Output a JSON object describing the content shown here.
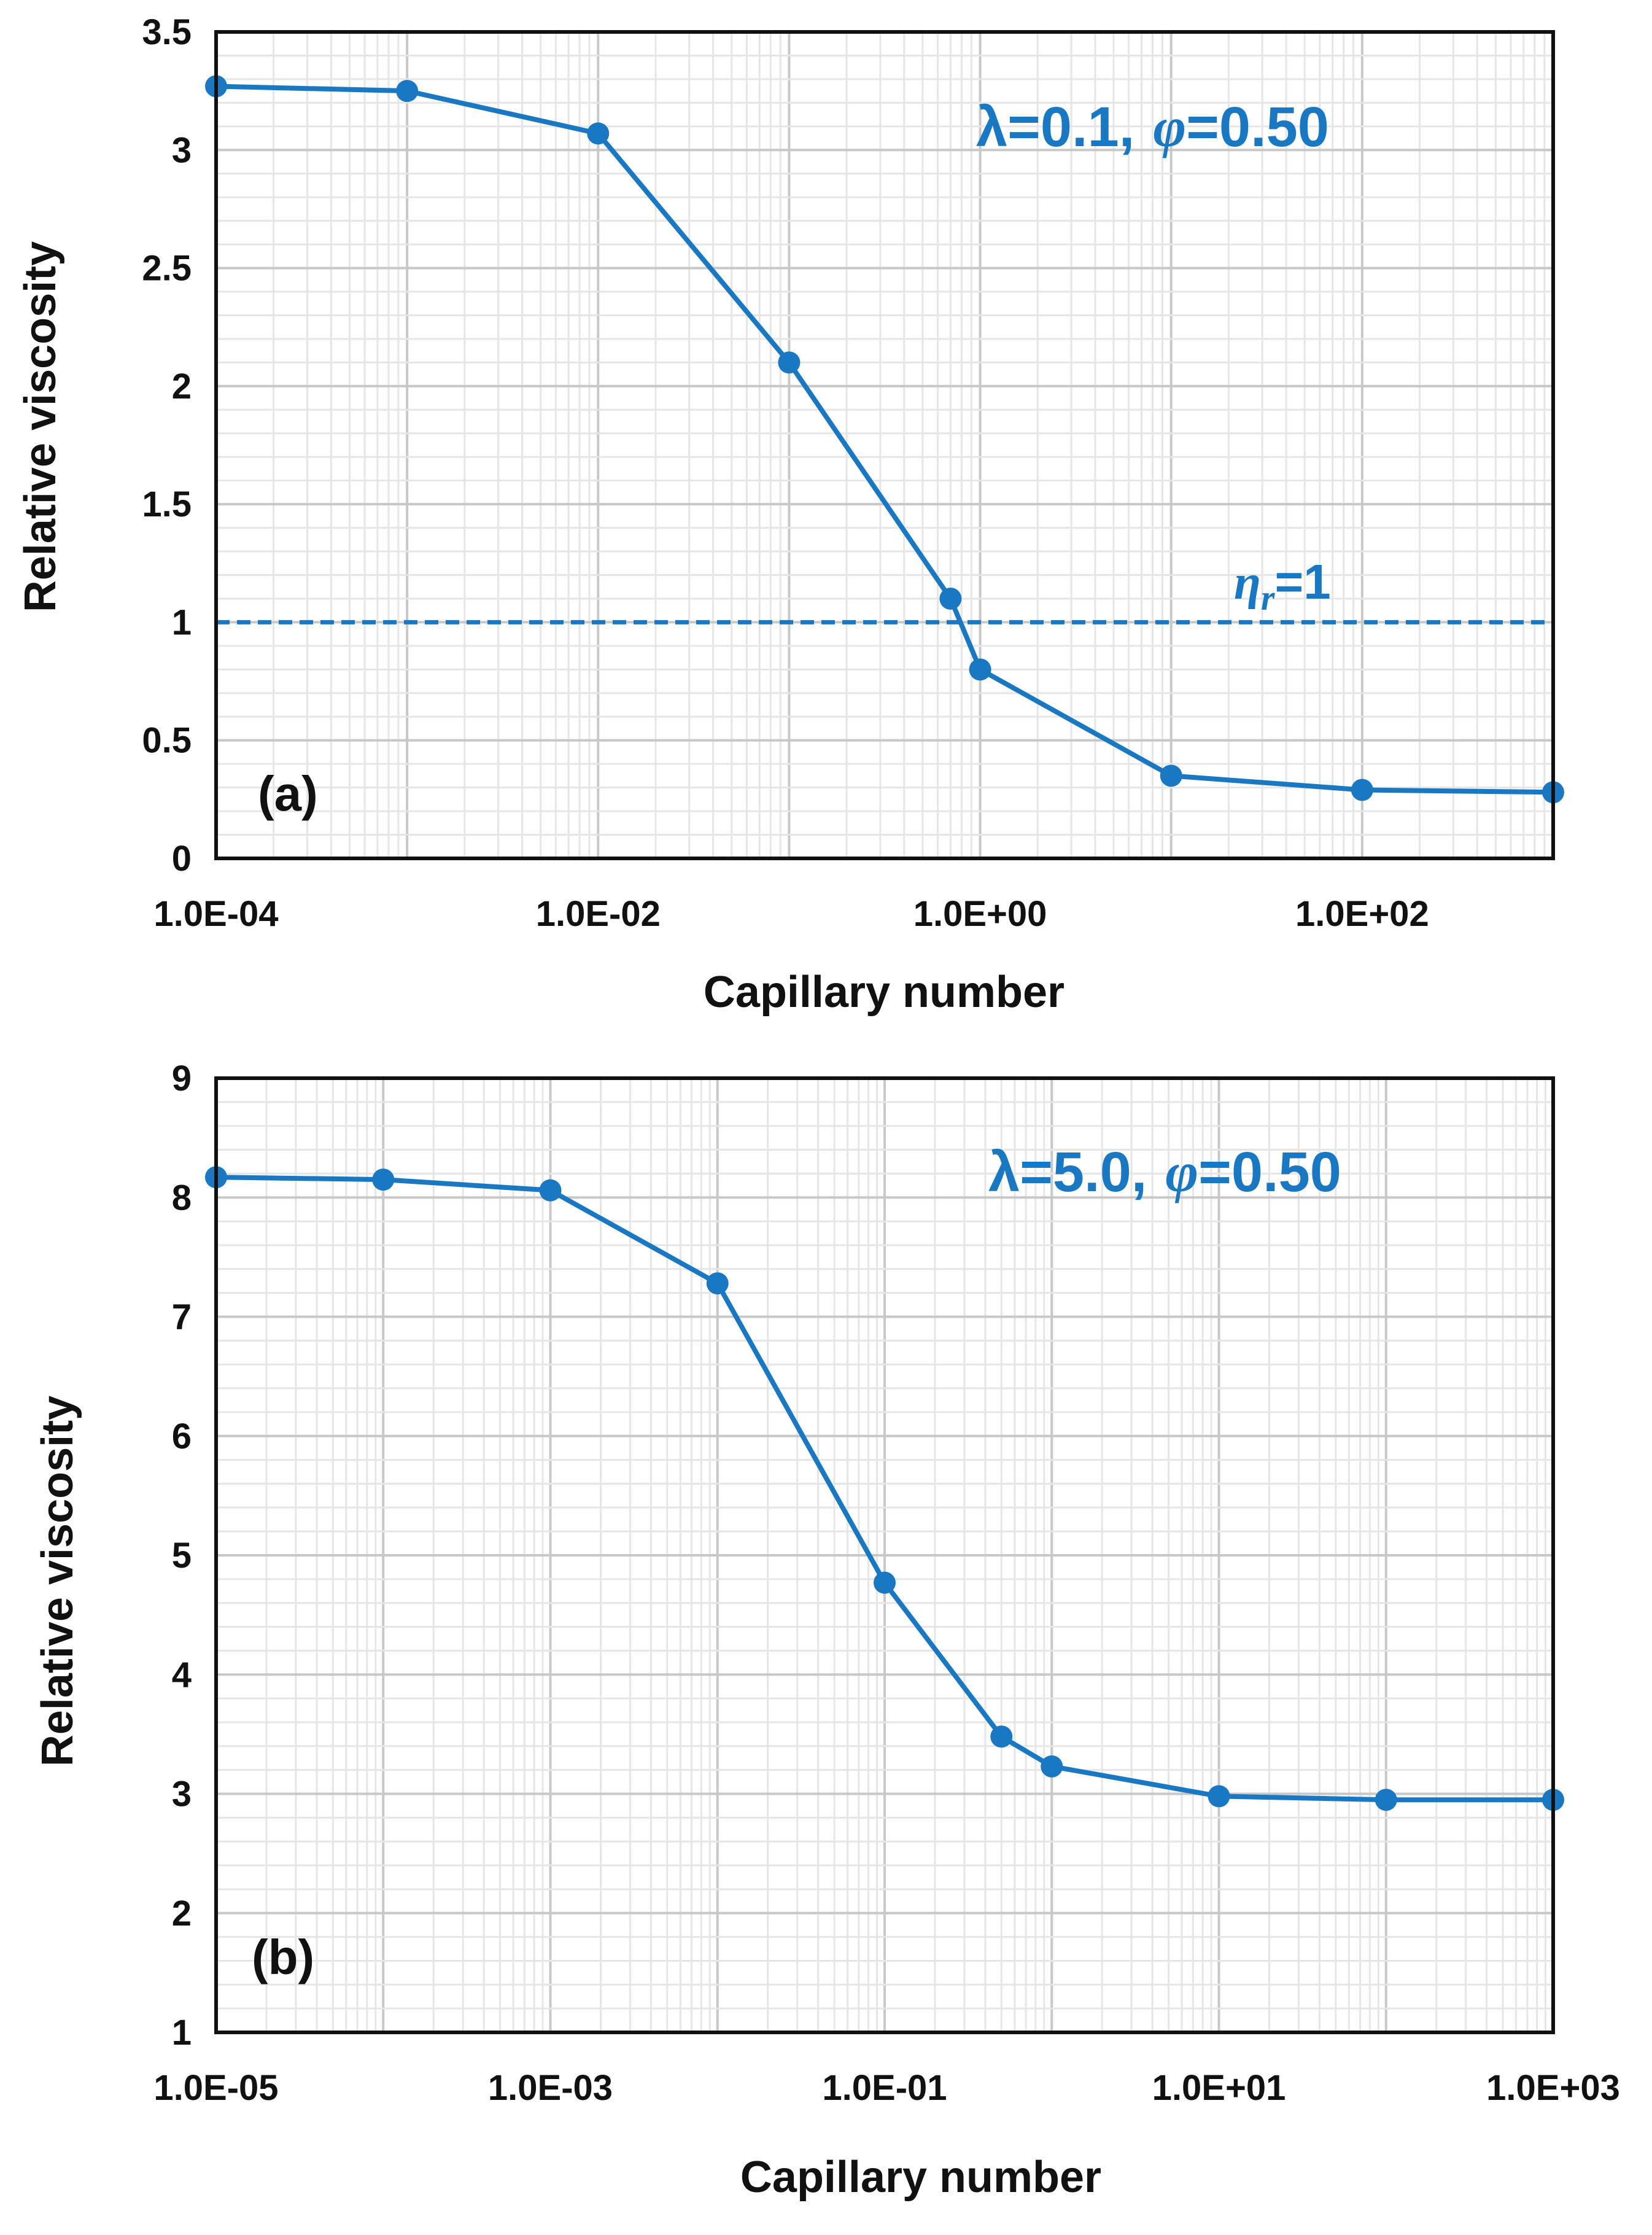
{
  "colors": {
    "series": "#1a78c2",
    "grid_major": "#c8c8c8",
    "grid_minor": "#e6e6e6",
    "axis": "#111111"
  },
  "chart_data": [
    {
      "type": "line",
      "panel_label": "(a)",
      "xlabel": "Capillary number",
      "ylabel": "Relative viscosity",
      "xscale": "log",
      "xlim": [
        0.0001,
        1000
      ],
      "ylim": [
        0,
        3.5
      ],
      "xticks": [
        0.0001,
        0.01,
        1,
        100
      ],
      "xtick_labels": [
        "1.0E-04",
        "1.0E-02",
        "1.0E+00",
        "1.0E+02"
      ],
      "yticks": [
        0,
        0.5,
        1,
        1.5,
        2,
        2.5,
        3,
        3.5
      ],
      "ytick_labels": [
        "0",
        "0.5",
        "1",
        "1.5",
        "2",
        "2.5",
        "3",
        "3.5"
      ],
      "annotation": {
        "lambda": "λ=0.1,",
        "phi_symbol": "φ",
        "phi_value": "=0.50"
      },
      "reference_line": {
        "y": 1,
        "label_symbol": "η",
        "label_sub": "r",
        "label_value": "=1"
      },
      "series": [
        {
          "name": "λ=0.1, φ=0.50",
          "x": [
            0.0001,
            0.001,
            0.01,
            0.1,
            0.7,
            1,
            10,
            100,
            1000
          ],
          "y": [
            3.27,
            3.25,
            3.07,
            2.1,
            1.1,
            0.8,
            0.35,
            0.29,
            0.28
          ]
        }
      ]
    },
    {
      "type": "line",
      "panel_label": "(b)",
      "xlabel": "Capillary number",
      "ylabel": "Relative viscosity",
      "xscale": "log",
      "xlim": [
        1e-05,
        1000
      ],
      "ylim": [
        1,
        9
      ],
      "xticks": [
        1e-05,
        0.001,
        0.1,
        10,
        1000
      ],
      "xtick_labels": [
        "1.0E-05",
        "1.0E-03",
        "1.0E-01",
        "1.0E+01",
        "1.0E+03"
      ],
      "yticks": [
        1,
        2,
        3,
        4,
        5,
        6,
        7,
        8,
        9
      ],
      "ytick_labels": [
        "1",
        "2",
        "3",
        "4",
        "5",
        "6",
        "7",
        "8",
        "9"
      ],
      "annotation": {
        "lambda": "λ=5.0,",
        "phi_symbol": "φ",
        "phi_value": "=0.50"
      },
      "series": [
        {
          "name": "λ=5.0, φ=0.50",
          "x": [
            1e-05,
            0.0001,
            0.001,
            0.01,
            0.1,
            0.5,
            1,
            10,
            100,
            1000
          ],
          "y": [
            8.17,
            8.15,
            8.06,
            7.28,
            4.77,
            3.48,
            3.23,
            2.98,
            2.95,
            2.95
          ]
        }
      ]
    }
  ]
}
